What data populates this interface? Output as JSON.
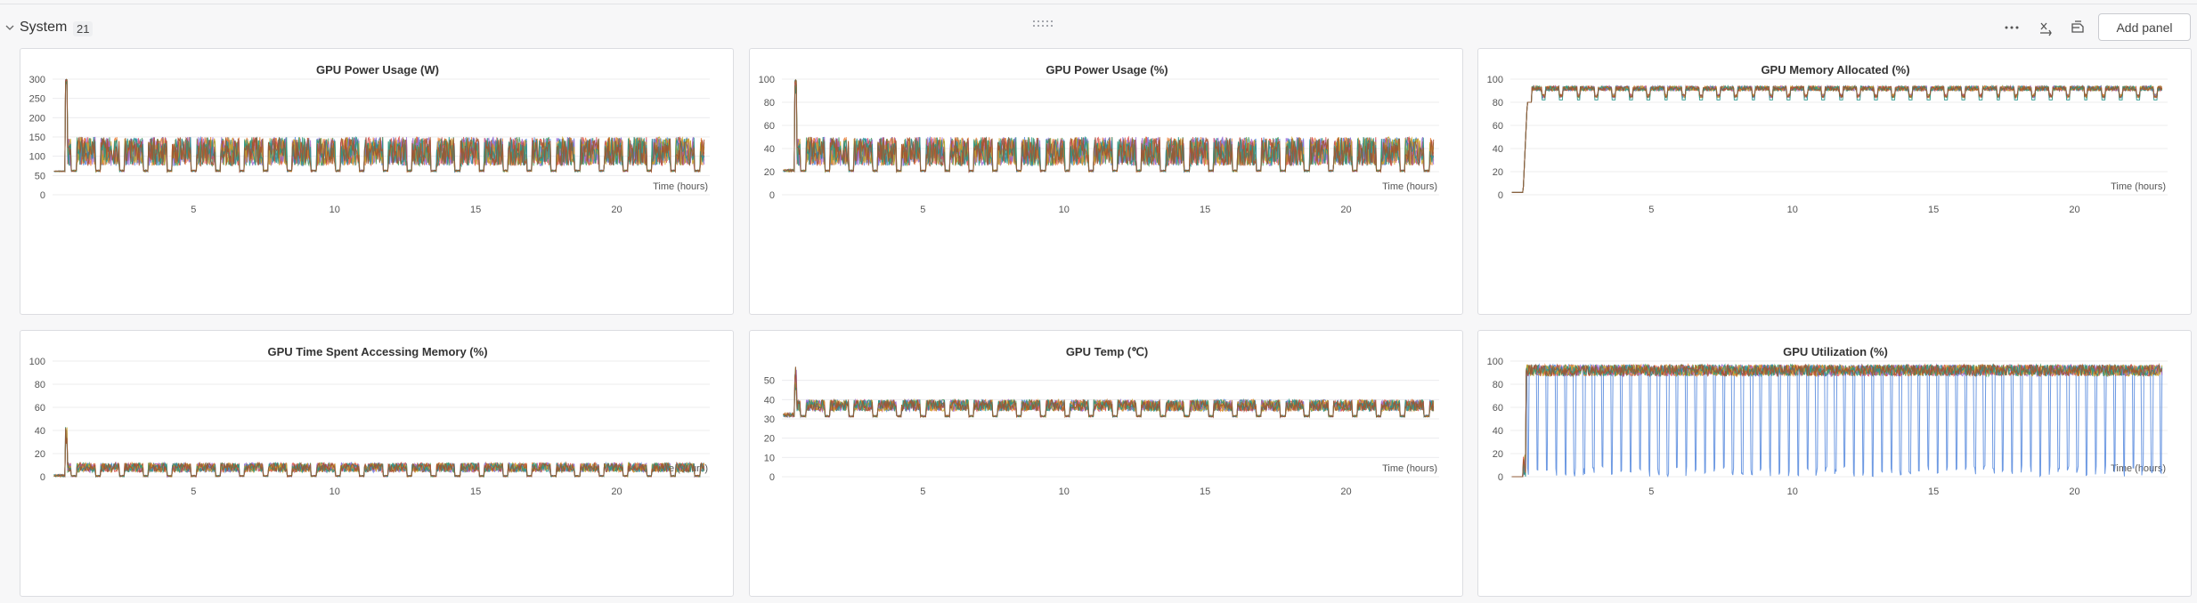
{
  "section": {
    "title": "System",
    "count": "21",
    "add_panel_label": "Add panel",
    "icons": [
      "chevron-down-icon",
      "drag-handle-icon",
      "more-options-icon",
      "x-axis-icon",
      "panel-settings-icon"
    ]
  },
  "chart_data": [
    {
      "type": "line",
      "title": "GPU Power Usage (W)",
      "xlabel": "Time (hours)",
      "ylabel": "",
      "xlim": [
        0,
        23.3
      ],
      "ylim": [
        0,
        300
      ],
      "yticks": [
        0,
        50,
        100,
        150,
        200,
        250,
        300
      ],
      "xticks": [
        5,
        10,
        15,
        20
      ],
      "series_colors": [
        "#5387dd",
        "#e87b31",
        "#479a5f",
        "#da4c4c",
        "#9b6fd6",
        "#c9a227",
        "#229487",
        "#a0522d"
      ],
      "pattern": {
        "warmup_end": 0.45,
        "idle": 60,
        "spike_peak": 300,
        "active_low": 75,
        "active_high": 150,
        "cycle_hours": 0.85
      },
      "annotations": []
    },
    {
      "type": "line",
      "title": "GPU Power Usage (%)",
      "xlabel": "Time (hours)",
      "ylabel": "",
      "xlim": [
        0,
        23.3
      ],
      "ylim": [
        0,
        100
      ],
      "yticks": [
        0,
        20,
        40,
        60,
        80,
        100
      ],
      "xticks": [
        5,
        10,
        15,
        20
      ],
      "series_colors": [
        "#5387dd",
        "#e87b31",
        "#479a5f",
        "#da4c4c",
        "#9b6fd6",
        "#c9a227",
        "#229487",
        "#a0522d"
      ],
      "pattern": {
        "warmup_end": 0.45,
        "idle": 20,
        "spike_peak": 100,
        "active_low": 25,
        "active_high": 50,
        "cycle_hours": 0.85
      },
      "annotations": []
    },
    {
      "type": "line",
      "title": "GPU Memory Allocated (%)",
      "xlabel": "Time (hours)",
      "ylabel": "",
      "xlim": [
        0,
        23.3
      ],
      "ylim": [
        0,
        100
      ],
      "yticks": [
        0,
        20,
        40,
        60,
        80,
        100
      ],
      "xticks": [
        5,
        10,
        15,
        20
      ],
      "series_colors": [
        "#5387dd",
        "#e87b31",
        "#479a5f",
        "#da4c4c",
        "#9b6fd6",
        "#c9a227",
        "#229487",
        "#a0522d"
      ],
      "pattern": {
        "warmup_end": 0.45,
        "start": 2,
        "ramp_to": 80,
        "plateau_high": 94,
        "plateau_low": 84,
        "cycle_hours": 0.62
      },
      "annotations": []
    },
    {
      "type": "line",
      "title": "GPU Time Spent Accessing Memory (%)",
      "xlabel": "Time (hours)",
      "ylabel": "",
      "xlim": [
        0,
        23.3
      ],
      "ylim": [
        0,
        100
      ],
      "yticks": [
        0,
        20,
        40,
        60,
        80,
        100
      ],
      "xticks": [
        5,
        10,
        15,
        20
      ],
      "series_colors": [
        "#5387dd",
        "#e87b31",
        "#479a5f",
        "#da4c4c",
        "#9b6fd6",
        "#c9a227",
        "#229487",
        "#a0522d"
      ],
      "pattern": {
        "warmup_end": 0.45,
        "idle": 0,
        "spike_peak": 43,
        "active_low": 4,
        "active_high": 12,
        "cycle_hours": 0.85
      },
      "annotations": []
    },
    {
      "type": "line",
      "title": "GPU Temp (℃)",
      "xlabel": "Time (hours)",
      "ylabel": "",
      "xlim": [
        0,
        23.3
      ],
      "ylim": [
        0,
        60
      ],
      "yticks": [
        0,
        10,
        20,
        30,
        40,
        50
      ],
      "xticks": [
        5,
        10,
        15,
        20
      ],
      "series_colors": [
        "#5387dd",
        "#e87b31",
        "#479a5f",
        "#da4c4c",
        "#9b6fd6",
        "#c9a227",
        "#229487",
        "#a0522d"
      ],
      "pattern": {
        "warmup_end": 0.45,
        "idle": 31,
        "spike_peak": 58,
        "active_low": 34,
        "active_high": 40,
        "cycle_hours": 0.85
      },
      "annotations": []
    },
    {
      "type": "line",
      "title": "GPU Utilization (%)",
      "xlabel": "Time (hours)",
      "ylabel": "",
      "xlim": [
        0,
        23.3
      ],
      "ylim": [
        0,
        100
      ],
      "yticks": [
        0,
        20,
        40,
        60,
        80,
        100
      ],
      "xticks": [
        5,
        10,
        15,
        20
      ],
      "series_colors": [
        "#5387dd",
        "#e87b31",
        "#479a5f",
        "#da4c4c",
        "#9b6fd6",
        "#c9a227",
        "#229487",
        "#a0522d"
      ],
      "pattern": {
        "warmup_end": 0.45,
        "start": 0,
        "high": 97,
        "dip_to": 0,
        "dip_series": "#2a84d2",
        "cycle_hours": 0.33
      },
      "annotations": []
    }
  ]
}
